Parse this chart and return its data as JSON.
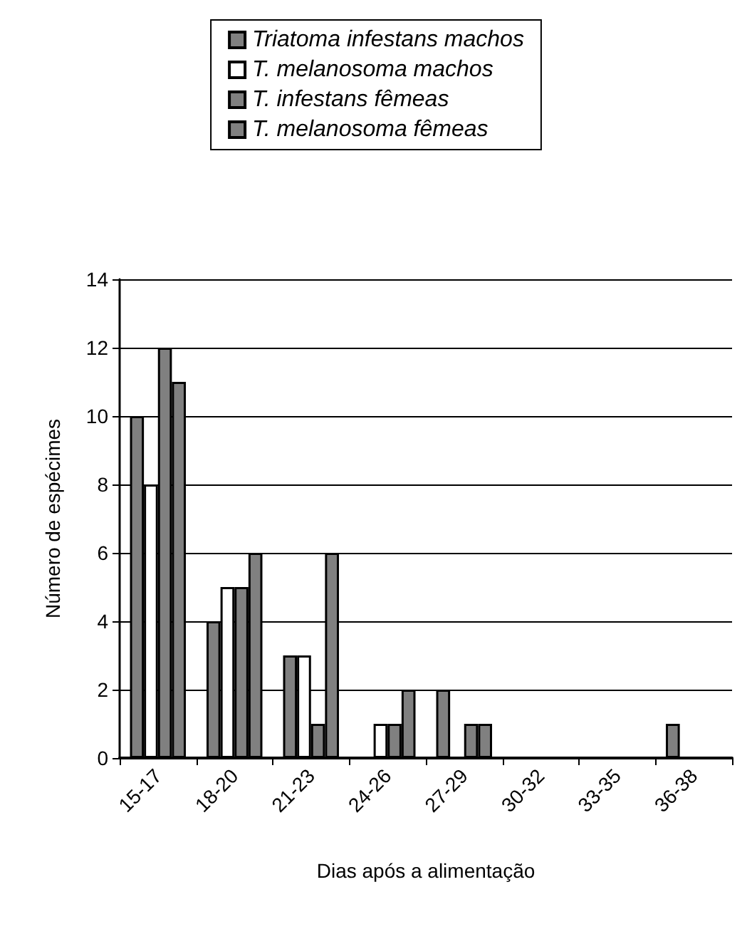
{
  "chart_data": {
    "type": "bar",
    "xlabel": "Dias após a alimentação",
    "ylabel": "Número de espécimes",
    "categories": [
      "15-17",
      "18-20",
      "21-23",
      "24-26",
      "27-29",
      "30-32",
      "33-35",
      "36-38"
    ],
    "series": [
      {
        "name": "Triatoma infestans machos",
        "color": "#808080",
        "values": [
          10,
          4,
          3,
          0,
          2,
          0,
          0,
          1
        ]
      },
      {
        "name": "T. melanosoma machos",
        "color": "#ffffff",
        "values": [
          8,
          5,
          3,
          1,
          0,
          0,
          0,
          0
        ]
      },
      {
        "name": "T. infestans fêmeas",
        "color": "#808080",
        "values": [
          12,
          5,
          1,
          1,
          1,
          0,
          0,
          0
        ]
      },
      {
        "name": "T. melanosoma fêmeas",
        "color": "#808080",
        "values": [
          11,
          6,
          6,
          2,
          1,
          0,
          0,
          0
        ]
      }
    ],
    "ylim": [
      0,
      14
    ],
    "yticks": [
      0,
      2,
      4,
      6,
      8,
      10,
      12,
      14
    ],
    "grid": "y",
    "legend": "top"
  }
}
